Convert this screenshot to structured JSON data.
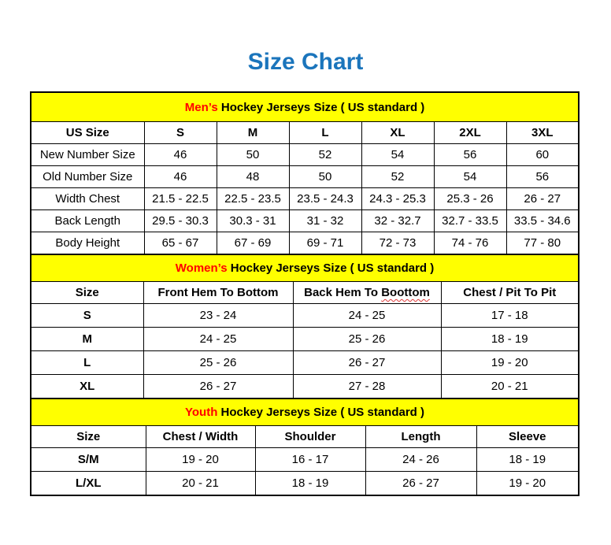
{
  "page": {
    "title": "Size Chart"
  },
  "colors": {
    "title_blue": "#1B75BC",
    "band_yellow": "#FFFF00",
    "accent_red": "#FF0000",
    "border_black": "#000000"
  },
  "tables": [
    {
      "id": "mens",
      "heading": {
        "accent": "Men’s",
        "rest": " Hockey Jerseys Size ( US standard )"
      },
      "columns": [
        "US Size",
        "S",
        "M",
        "L",
        "XL",
        "2XL",
        "3XL"
      ],
      "rows": [
        {
          "label": "New Number Size",
          "values": [
            "46",
            "50",
            "52",
            "54",
            "56",
            "60"
          ]
        },
        {
          "label": "Old Number Size",
          "values": [
            "46",
            "48",
            "50",
            "52",
            "54",
            "56"
          ]
        },
        {
          "label": "Width Chest",
          "values": [
            "21.5 - 22.5",
            "22.5 - 23.5",
            "23.5 - 24.3",
            "24.3 - 25.3",
            "25.3 - 26",
            "26 - 27"
          ]
        },
        {
          "label": "Back Length",
          "values": [
            "29.5 - 30.3",
            "30.3 - 31",
            "31 - 32",
            "32 - 32.7",
            "32.7 - 33.5",
            "33.5 - 34.6"
          ]
        },
        {
          "label": "Body Height",
          "values": [
            "65 - 67",
            "67 - 69",
            "69 - 71",
            "72 - 73",
            "74 - 76",
            "77 - 80"
          ]
        }
      ]
    },
    {
      "id": "womens",
      "heading": {
        "accent": "Women’s",
        "rest": " Hockey Jerseys Size ( US standard )"
      },
      "columns": [
        "Size",
        "Front Hem To Bottom",
        {
          "label": "Back Hem To Boottom",
          "squiggle_word": "Boottom"
        },
        "Chest / Pit To Pit"
      ],
      "rows": [
        {
          "label": "S",
          "values": [
            "23 - 24",
            "24 - 25",
            "17 - 18"
          ]
        },
        {
          "label": "M",
          "values": [
            "24 - 25",
            "25 - 26",
            "18 - 19"
          ]
        },
        {
          "label": "L",
          "values": [
            "25 - 26",
            "26 - 27",
            "19 - 20"
          ]
        },
        {
          "label": "XL",
          "values": [
            "26 - 27",
            "27 - 28",
            "20 - 21"
          ]
        }
      ]
    },
    {
      "id": "youth",
      "heading": {
        "accent": "Youth",
        "rest": " Hockey Jerseys Size ( US standard )"
      },
      "columns": [
        "Size",
        "Chest / Width",
        "Shoulder",
        "Length",
        "Sleeve"
      ],
      "rows": [
        {
          "label": "S/M",
          "values": [
            "19 - 20",
            "16 - 17",
            "24 - 26",
            "18 - 19"
          ]
        },
        {
          "label": "L/XL",
          "values": [
            "20 - 21",
            "18 - 19",
            "26 - 27",
            "19 - 20"
          ]
        }
      ]
    }
  ]
}
